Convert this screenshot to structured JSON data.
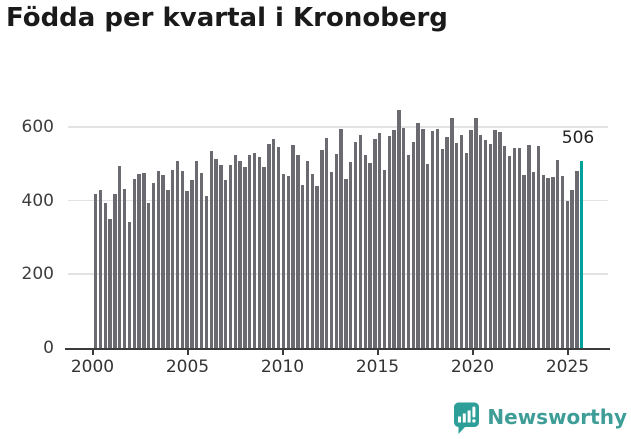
{
  "title": "Födda per kvartal i Kronoberg",
  "annotation": {
    "latest_value_label": "506"
  },
  "y_axis": {
    "ticks": [
      "0",
      "200",
      "400",
      "600"
    ]
  },
  "x_axis": {
    "ticks": [
      "2000",
      "2005",
      "2010",
      "2015",
      "2020",
      "2025"
    ]
  },
  "footer": {
    "brand": "Newsworthy",
    "logo_icon": "newsworthy-speech-bubble-bar-chart-icon"
  },
  "colors": {
    "bar": "#6b6a70",
    "highlight": "#00a09b",
    "grid": "#e3e3e3",
    "axis": "#3c3c3c",
    "title_text": "#1a1a1a",
    "brand": "#3f9d97"
  },
  "chart_data": {
    "type": "bar",
    "title": "Födda per kvartal i Kronoberg",
    "xlabel": "",
    "ylabel": "",
    "ylim": [
      0,
      660
    ],
    "y_ticks": [
      0,
      200,
      400,
      600
    ],
    "x_tick_years": [
      2000,
      2005,
      2010,
      2015,
      2020,
      2025
    ],
    "grid": "horizontal",
    "legend": "none",
    "highlight": {
      "category": "2025 Q2",
      "value": 506,
      "label": "506",
      "color": "#00a09b"
    },
    "categories": [
      "2000 Q1",
      "2000 Q2",
      "2000 Q3",
      "2000 Q4",
      "2001 Q1",
      "2001 Q2",
      "2001 Q3",
      "2001 Q4",
      "2002 Q1",
      "2002 Q2",
      "2002 Q3",
      "2002 Q4",
      "2003 Q1",
      "2003 Q2",
      "2003 Q3",
      "2003 Q4",
      "2004 Q1",
      "2004 Q2",
      "2004 Q3",
      "2004 Q4",
      "2005 Q1",
      "2005 Q2",
      "2005 Q3",
      "2005 Q4",
      "2006 Q1",
      "2006 Q2",
      "2006 Q3",
      "2006 Q4",
      "2007 Q1",
      "2007 Q2",
      "2007 Q3",
      "2007 Q4",
      "2008 Q1",
      "2008 Q2",
      "2008 Q3",
      "2008 Q4",
      "2009 Q1",
      "2009 Q2",
      "2009 Q3",
      "2009 Q4",
      "2010 Q1",
      "2010 Q2",
      "2010 Q3",
      "2010 Q4",
      "2011 Q1",
      "2011 Q2",
      "2011 Q3",
      "2011 Q4",
      "2012 Q1",
      "2012 Q2",
      "2012 Q3",
      "2012 Q4",
      "2013 Q1",
      "2013 Q2",
      "2013 Q3",
      "2013 Q4",
      "2014 Q1",
      "2014 Q2",
      "2014 Q3",
      "2014 Q4",
      "2015 Q1",
      "2015 Q2",
      "2015 Q3",
      "2015 Q4",
      "2016 Q1",
      "2016 Q2",
      "2016 Q3",
      "2016 Q4",
      "2017 Q1",
      "2017 Q2",
      "2017 Q3",
      "2017 Q4",
      "2018 Q1",
      "2018 Q2",
      "2018 Q3",
      "2018 Q4",
      "2019 Q1",
      "2019 Q2",
      "2019 Q3",
      "2019 Q4",
      "2020 Q1",
      "2020 Q2",
      "2020 Q3",
      "2020 Q4",
      "2021 Q1",
      "2021 Q2",
      "2021 Q3",
      "2021 Q4",
      "2022 Q1",
      "2022 Q2",
      "2022 Q3",
      "2022 Q4",
      "2023 Q1",
      "2023 Q2",
      "2023 Q3",
      "2023 Q4",
      "2024 Q1",
      "2024 Q2",
      "2024 Q3",
      "2024 Q4",
      "2025 Q1",
      "2025 Q2"
    ],
    "values": [
      415,
      426,
      392,
      350,
      415,
      492,
      431,
      341,
      456,
      470,
      473,
      391,
      447,
      478,
      467,
      427,
      481,
      505,
      478,
      424,
      454,
      505,
      474,
      411,
      532,
      510,
      494,
      454,
      494,
      521,
      506,
      490,
      521,
      528,
      515,
      489,
      552,
      566,
      544,
      471,
      466,
      550,
      523,
      441,
      506,
      471,
      439,
      534,
      568,
      475,
      525,
      593,
      458,
      503,
      557,
      575,
      523,
      499,
      566,
      582,
      481,
      573,
      589,
      643,
      595,
      523,
      557,
      607,
      593,
      498,
      586,
      593,
      539,
      571,
      622,
      555,
      577,
      528,
      589,
      622,
      575,
      562,
      551,
      590,
      584,
      546,
      518,
      541,
      541,
      469,
      548,
      476,
      546,
      467,
      460,
      463,
      508,
      464,
      397,
      428,
      478,
      506
    ]
  }
}
